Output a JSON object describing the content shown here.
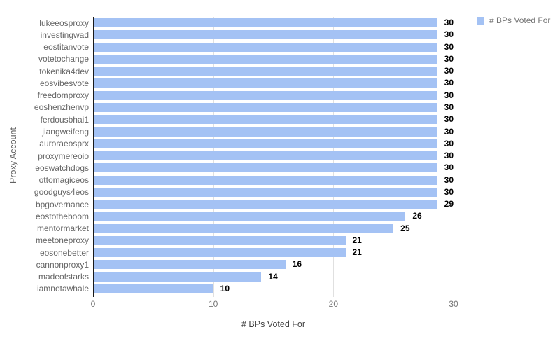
{
  "legend": {
    "label": "# BPs Voted For",
    "swatch_color": "#a4c2f4"
  },
  "colors": {
    "bar": "#a4c2f4",
    "gridline": "#e0e0e0",
    "axis_baseline": "#1a1a1a",
    "tick_label": "#757575",
    "category_label": "#666666",
    "value_label": "#000000",
    "background": "#ffffff"
  },
  "chart_data": {
    "type": "bar",
    "orientation": "horizontal",
    "title": "",
    "xlabel": "# BPs Voted For",
    "ylabel": "Proxy Account",
    "series_name": "# BPs Voted For",
    "categories": [
      "lukeeosproxy",
      "investingwad",
      "eostitanvote",
      "votetochange",
      "tokenika4dev",
      "eosvibesvote",
      "freedomproxy",
      "eoshenzhenvp",
      "ferdousbhai1",
      "jiangweifeng",
      "auroraeosprx",
      "proxymereoio",
      "eoswatchdogs",
      "ottomagiceos",
      "goodguys4eos",
      "bpgovernance",
      "eostotheboom",
      "mentormarket",
      "meetoneproxy",
      "eosonebetter",
      "cannonproxy1",
      "madeofstarks",
      "iamnotawhale"
    ],
    "values": [
      30,
      30,
      30,
      30,
      30,
      30,
      30,
      30,
      30,
      30,
      30,
      30,
      30,
      30,
      30,
      29,
      26,
      25,
      21,
      21,
      16,
      14,
      10
    ],
    "data_labels": true,
    "xlim": [
      0,
      30
    ],
    "xticks": [
      0,
      10,
      20,
      30
    ],
    "grid": "vertical",
    "legend_position": "top-right",
    "bar_color": "#a4c2f4"
  }
}
